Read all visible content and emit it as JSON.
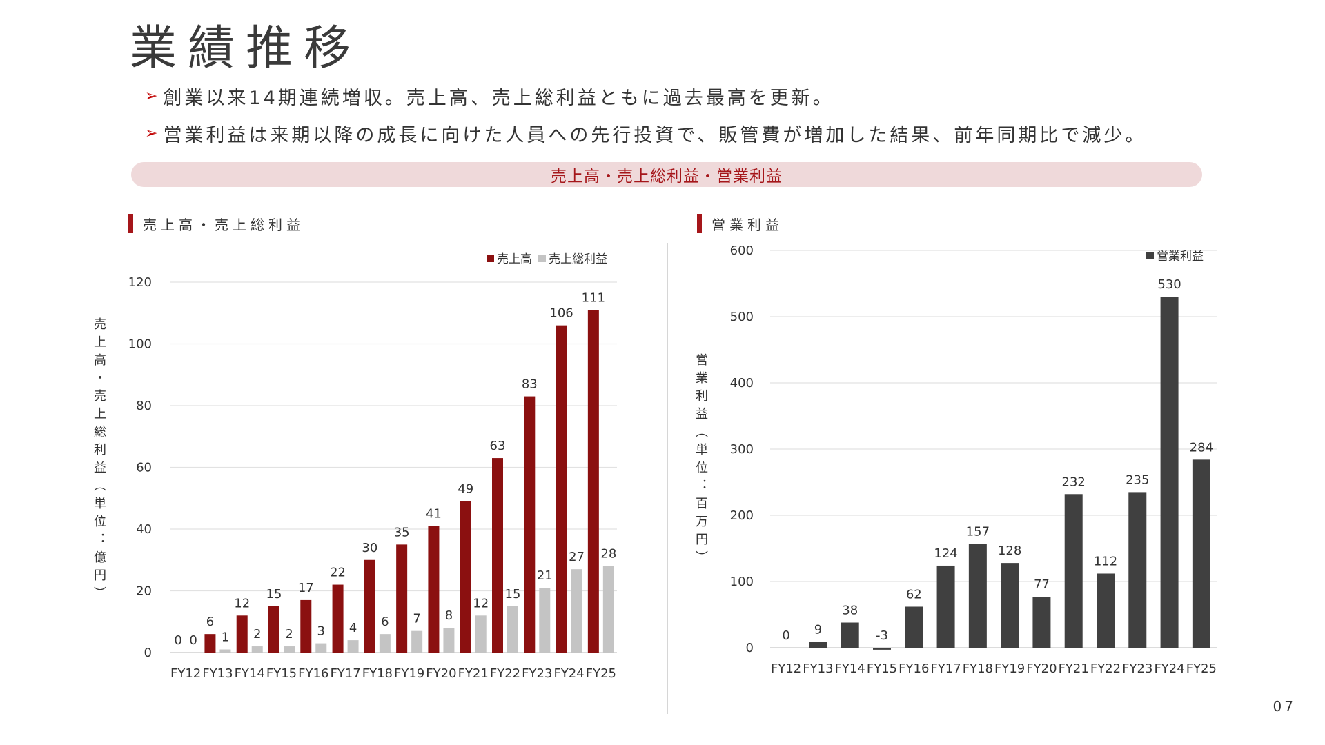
{
  "page": {
    "title": "業績推移",
    "bullets": [
      "創業以来14期連続増収。売上高、売上総利益ともに過去最高を更新。",
      "営業利益は来期以降の成長に向けた人員への先行投資で、販管費が増加した結果、前年同期比で減少。"
    ],
    "bullet_marker": "➢",
    "banner": "売上高・売上総利益・営業利益",
    "page_number": "07",
    "colors": {
      "accent": "#a5161a",
      "banner_bg": "#efd9da"
    }
  },
  "chart_data": [
    {
      "type": "bar",
      "heading": "売上高・売上総利益",
      "ylabel": "売上高・売上総利益（単位：億円）",
      "categories": [
        "FY12",
        "FY13",
        "FY14",
        "FY15",
        "FY16",
        "FY17",
        "FY18",
        "FY19",
        "FY20",
        "FY21",
        "FY22",
        "FY23",
        "FY24",
        "FY25"
      ],
      "series": [
        {
          "name": "売上高",
          "color": "#8b1010",
          "values": [
            0,
            6,
            12,
            15,
            17,
            22,
            30,
            35,
            41,
            49,
            63,
            83,
            106,
            111
          ]
        },
        {
          "name": "売上総利益",
          "color": "#c4c4c4",
          "values": [
            0,
            1,
            2,
            2,
            3,
            4,
            6,
            7,
            8,
            12,
            15,
            21,
            27,
            28
          ]
        }
      ],
      "ylim": [
        0,
        120
      ],
      "yticks": [
        0,
        20,
        40,
        60,
        80,
        100,
        120
      ],
      "grid": true,
      "legend": "top-right"
    },
    {
      "type": "bar",
      "heading": "営業利益",
      "ylabel": "営業利益（単位：百万円）",
      "categories": [
        "FY12",
        "FY13",
        "FY14",
        "FY15",
        "FY16",
        "FY17",
        "FY18",
        "FY19",
        "FY20",
        "FY21",
        "FY22",
        "FY23",
        "FY24",
        "FY25"
      ],
      "series": [
        {
          "name": "営業利益",
          "color": "#404040",
          "values": [
            0,
            9,
            38,
            -3,
            62,
            124,
            157,
            128,
            77,
            232,
            112,
            235,
            530,
            284
          ]
        }
      ],
      "ylim": [
        0,
        600
      ],
      "yticks": [
        0,
        100,
        200,
        300,
        400,
        500,
        600
      ],
      "grid": true,
      "legend": "top-right"
    }
  ]
}
